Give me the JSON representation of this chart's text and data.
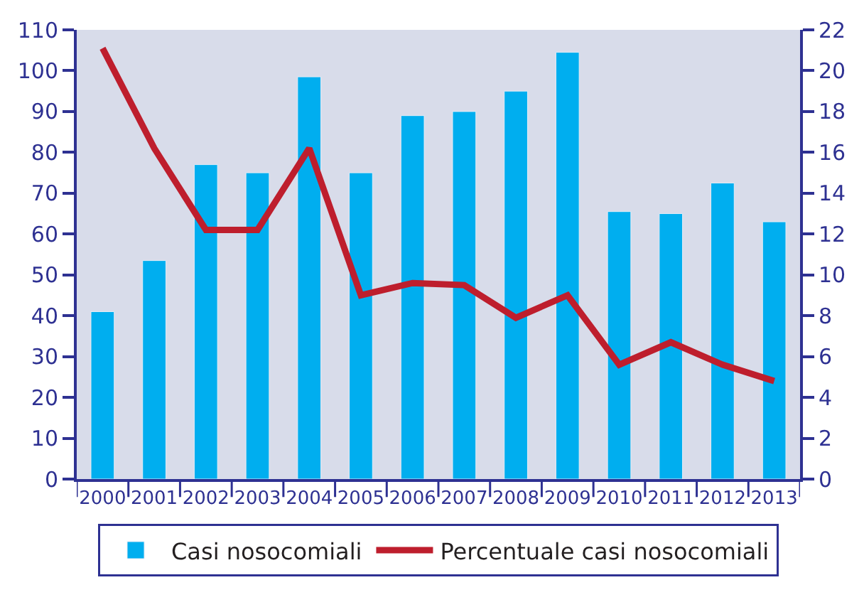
{
  "chart_data": {
    "type": "bar",
    "categories": [
      "2000",
      "2001",
      "2002",
      "2003",
      "2004",
      "2005",
      "2006",
      "2007",
      "2008",
      "2009",
      "2010",
      "2011",
      "2012",
      "2013"
    ],
    "series": [
      {
        "name": "Casi nosocomiali",
        "color": "#00aeef",
        "values": [
          41,
          53.5,
          77,
          75,
          98.5,
          75,
          89,
          90,
          95,
          104.5,
          65.5,
          65,
          72.5,
          63
        ]
      },
      {
        "name": "Percentuale casi nosocomiali",
        "type": "line",
        "axis": "y2",
        "color": "#be1e2d",
        "values": [
          21.1,
          16.2,
          12.2,
          12.2,
          16.2,
          9,
          9.6,
          9.5,
          7.9,
          9,
          5.6,
          6.7,
          5.6,
          4.8
        ]
      }
    ],
    "ylim": [
      0,
      110
    ],
    "yticks": [
      0,
      10,
      20,
      30,
      40,
      50,
      60,
      70,
      80,
      90,
      100,
      110
    ],
    "y2lim": [
      0,
      22
    ],
    "y2ticks": [
      0,
      2,
      4,
      6,
      8,
      10,
      12,
      14,
      16,
      18,
      20,
      22
    ],
    "grid": false,
    "legend": "bottom",
    "marker": "none",
    "line_style": "solid"
  }
}
